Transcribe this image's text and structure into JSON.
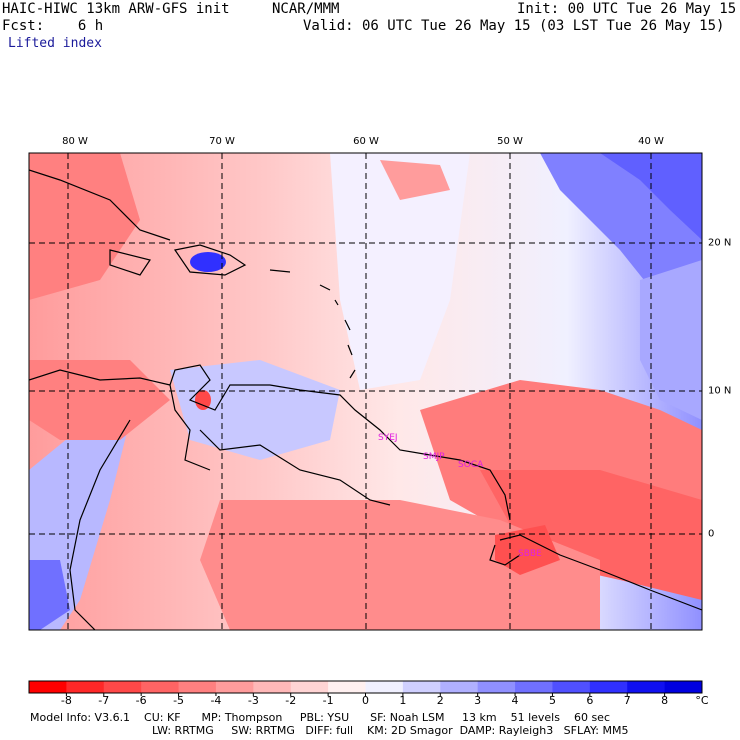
{
  "header": {
    "model": "HAIC-HIWC 13km ARW-GFS init",
    "org": "NCAR/MMM",
    "init": "Init: 00 UTC Tue 26 May 15",
    "fcst": "Fcst:    6 h",
    "valid": "Valid: 06 UTC Tue 26 May 15 (03 LST Tue 26 May 15)",
    "field": "Lifted index"
  },
  "map": {
    "lon_labels": [
      "80 W",
      "70 W",
      "60 W",
      "50 W",
      "40 W"
    ],
    "lat_labels": [
      "20 N",
      "10 N",
      "0"
    ],
    "stations": [
      "SYEJ",
      "SMJP",
      "SOCA",
      "SBBE"
    ]
  },
  "colorbar": {
    "labels": [
      "-8",
      "-7",
      "-6",
      "-5",
      "-4",
      "-3",
      "-2",
      "-1",
      "0",
      "1",
      "2",
      "3",
      "4",
      "5",
      "6",
      "7",
      "8"
    ],
    "unit": "°C",
    "colors": [
      "#ff0000",
      "#ff2828",
      "#ff4848",
      "#ff6464",
      "#ff8080",
      "#ff9c9c",
      "#ffb8b8",
      "#ffd4d4",
      "#fff0f0",
      "#f0f0ff",
      "#d0d0ff",
      "#b0b0ff",
      "#9090ff",
      "#7070ff",
      "#5050ff",
      "#3030ff",
      "#1010f0",
      "#0000e0"
    ]
  },
  "model_info": {
    "line1": "Model Info: V3.6.1    CU: KF      MP: Thompson     PBL: YSU      SF: Noah LSM     13 km    51 levels    60 sec",
    "line2": "LW: RRTMG     SW: RRTMG   DIFF: full    KM: 2D Smagor  DAMP: Rayleigh3   SFLAY: MM5"
  }
}
